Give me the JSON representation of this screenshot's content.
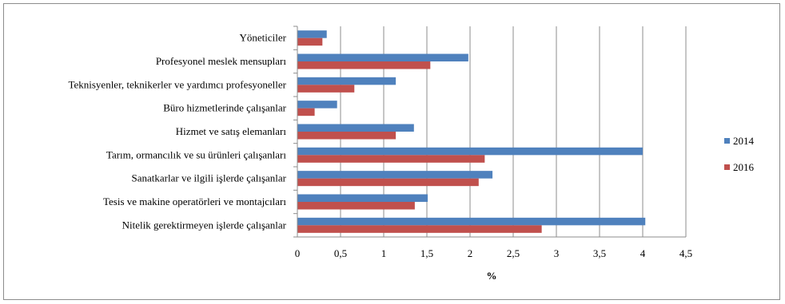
{
  "chart_data": {
    "type": "bar",
    "orientation": "horizontal",
    "title": "",
    "xlabel": "%",
    "ylabel": "",
    "xlim": [
      0,
      4.5
    ],
    "xticks": [
      "0",
      "0,5",
      "1",
      "1,5",
      "2",
      "2,5",
      "3",
      "3,5",
      "4",
      "4,5"
    ],
    "grid": true,
    "legend_position": "right",
    "categories": [
      "Yöneticiler",
      "Profesyonel meslek mensupları",
      "Teknisyenler, teknikerler ve yardımcı profesyoneller",
      "Büro hizmetlerinde çalışanlar",
      "Hizmet ve satış elemanları",
      "Tarım, ormancılık ve su ürünleri çalışanları",
      "Sanatkarlar ve ilgili işlerde çalışanlar",
      "Tesis ve makine operatörleri ve montajcıları",
      "Nitelik gerektirmeyen işlerde çalışanlar"
    ],
    "series": [
      {
        "name": "2014",
        "color": "#4f81bd",
        "values": [
          0.34,
          1.98,
          1.14,
          0.46,
          1.35,
          4.0,
          2.26,
          1.51,
          4.03
        ]
      },
      {
        "name": "2016",
        "color": "#c0504d",
        "values": [
          0.29,
          1.54,
          0.66,
          0.2,
          1.14,
          2.17,
          2.1,
          1.36,
          2.83
        ]
      }
    ]
  }
}
